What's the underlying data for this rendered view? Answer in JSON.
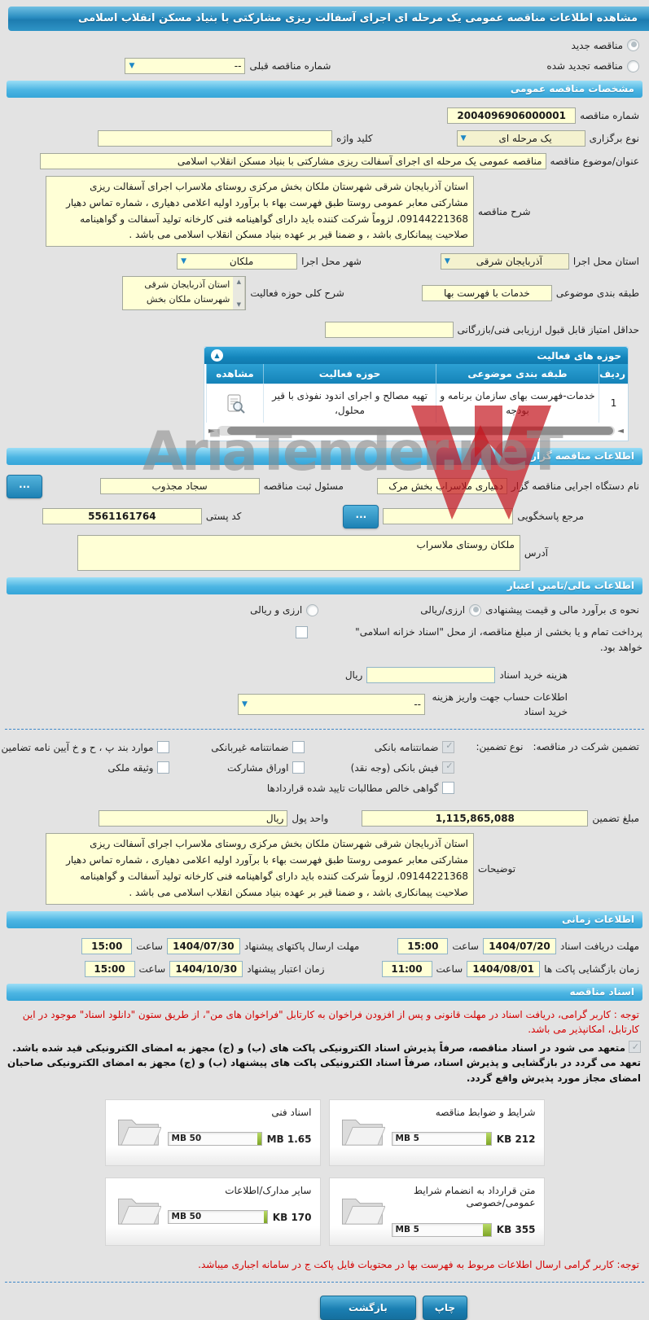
{
  "watermark": {
    "text": "AriaTender.neT"
  },
  "header": {
    "title": "مشاهده اطلاعات مناقصه عمومی یک مرحله ای اجرای آسفالت ریزی مشارکتی با بنیاد مسکن انقلاب اسلامی"
  },
  "top": {
    "new_label": "مناقصه جدید",
    "new_checked": true,
    "renew_label": "مناقصه تجدید شده",
    "renew_checked": false,
    "prev_no_label": "شماره مناقصه قبلی",
    "prev_no_value": "--"
  },
  "specs": {
    "bar": "مشخصات مناقصه عمومی",
    "no_label": "شماره مناقصه",
    "no_value": "2004096906000001",
    "type_label": "نوع برگزاری",
    "type_value": "یک مرحله ای",
    "keyword_label": "کلید واژه",
    "keyword_value": "",
    "subject_label": "عنوان/موضوع مناقصه",
    "subject_value": "مناقصه عمومی یک مرحله ای اجرای آسفالت ریزی مشارکتی با بنیاد مسکن انقلاب اسلامی",
    "desc_label": "شرح مناقصه",
    "desc_value": "استان آذربایجان شرقی شهرستان ملکان بخش مرکزی روستای ملاسراب اجرای آسفالت ریزی مشارکتی معابر عمومی روستا طبق فهرست بهاء با برآورد اولیه اعلامی دهیاری ، شماره تماس دهیار 09144221368، لزوماً شرکت کننده باید دارای گواهینامه فنی کارخانه تولید آسفالت و گواهینامه صلاحیت پیمانکاری باشد ، و ضمنا قیر بر عهده بنیاد مسکن انقلاب اسلامی می باشد .",
    "province_label": "استان محل اجرا",
    "province_value": "آذربایجان شرقی",
    "city_label": "شهر محل اجرا",
    "city_value": "ملکان",
    "category_label": "طبقه بندی موضوعی",
    "category_value": "خدمات با فهرست بها",
    "scope_label": "شرح کلی حوزه فعالیت",
    "scope_value": "استان آذربایجان شرقی شهرستان ملکان بخش",
    "min_score_label": "حداقل امتیاز قابل قبول ارزیابی فنی/بازرگانی",
    "min_score_value": ""
  },
  "activity_table": {
    "bar": "حوزه های فعالیت",
    "headers": {
      "no": "ردیف",
      "category": "طبقه بندی موضوعی",
      "activity": "حوزه فعالیت",
      "view": "مشاهده"
    },
    "rows": [
      {
        "no": "1",
        "category": "خدمات-فهرست بهای سازمان برنامه و بودجه",
        "activity": "تهیه مصالح و اجرای اندود نفوذی  با قیر محلول،"
      }
    ]
  },
  "employer": {
    "bar": "اطلاعات مناقصه گزار",
    "agency_label": "نام دستگاه اجرایی مناقصه گزار",
    "agency_value": "دهیاری ملاسراب بخش مرک",
    "registrar_label": "مسئول ثبت مناقصه",
    "registrar_value": "سجاد مجذوب",
    "ref_label": "مرجع پاسخگویی",
    "ref_value": "",
    "postal_label": "کد پستی",
    "postal_value": "5561161764",
    "address_label": "آدرس",
    "address_value": "ملکان روستای ملاسراب",
    "more_label": "..."
  },
  "financial": {
    "bar": "اطلاعات مالی/تامین اعتبار",
    "estimate_label": "نحوه ی برآورد مالی و قیمت پیشنهادی",
    "estimate_opt1": "ارزی/ریالی",
    "estimate_opt1_checked": true,
    "estimate_opt2": "ارزی و ریالی",
    "estimate_opt2_checked": false,
    "treasury_line1": "پرداخت تمام و یا بخشی از مبلغ مناقصه، از محل \"اسناد خزانه اسلامی\"",
    "treasury_line2": "خواهد بود.",
    "treasury_checked": false,
    "doc_fee_label": "هزینه خرید اسناد",
    "doc_fee_value": "",
    "currency": "ریال",
    "account_label": "اطلاعات حساب جهت واریز هزینه خرید اسناد",
    "account_value": "--",
    "guarantee_label": "تضمین شرکت در مناقصه:",
    "guarantee_type_label": "نوع تضمین:",
    "guarantee_options": [
      {
        "label": "ضمانتنامه بانکی",
        "checked": true
      },
      {
        "label": "ضمانتنامه غیربانکی",
        "checked": false
      },
      {
        "label": "موارد بند پ ، ح و خ آیین نامه تضامین",
        "checked": false
      },
      {
        "label": "فیش بانکی (وجه نقد)",
        "checked": true
      },
      {
        "label": "اوراق مشارکت",
        "checked": false
      },
      {
        "label": "وثیقه ملکی",
        "checked": false
      },
      {
        "label": "گواهی خالص مطالبات تایید شده قراردادها",
        "checked": false
      }
    ],
    "amount_label": "مبلغ تضمین",
    "amount_value": "1,115,865,088",
    "currency_unit_label": "واحد پول",
    "currency_unit_value": "ریال",
    "notes_label": "توضیحات",
    "notes_value": "استان آذربایجان شرقی شهرستان ملکان بخش مرکزی روستای ملاسراب اجرای آسفالت ریزی مشارکتی معابر عمومی روستا طبق فهرست بهاء با برآورد اولیه اعلامی دهیاری ، شماره تماس دهیار 09144221368، لزوماً شرکت کننده باید دارای گواهینامه فنی کارخانه تولید آسفالت و گواهینامه صلاحیت پیمانکاری باشد ، و ضمنا قیر بر عهده بنیاد مسکن انقلاب اسلامی می باشد ."
  },
  "schedule": {
    "bar": "اطلاعات زمانی",
    "hour_label": "ساعت",
    "rows": [
      {
        "r_label": "مهلت دریافت اسناد",
        "r_date": "1404/07/20",
        "r_time": "15:00",
        "l_label": "مهلت ارسال پاکتهای پیشنهاد",
        "l_date": "1404/07/30",
        "l_time": "15:00"
      },
      {
        "r_label": "زمان بازگشایی پاکت ها",
        "r_date": "1404/08/01",
        "r_time": "11:00",
        "l_label": "زمان اعتبار پیشنهاد",
        "l_date": "1404/10/30",
        "l_time": "15:00"
      }
    ]
  },
  "documents": {
    "bar": "اسناد مناقصه",
    "notice1": "توجه : کاربر گرامی، دریافت اسناد در مهلت قانونی و پس از افزودن فراخوان به کارتابل \"فراخوان های من\"، از طریق ستون \"دانلود اسناد\" موجود در این کارتابل، امکانپذیر می باشد.",
    "pledge_checked": true,
    "pledge": "متعهد می شود در اسناد مناقصه، صرفاً پذیرش اسناد الکترونیکی پاکت های (ب) و (ج) مجهز به امضای الکترونیکی قید شده باشد. تعهد می گردد در بازگشایی و پذیرش اسناد، صرفاً اسناد الکترونیکی پاکت های پیشنهاد (ب) و (ج) مجهز به امضای الکترونیکی صاحبان امضای مجاز مورد پذیرش واقع گردد.",
    "files": [
      {
        "title": "شرایط و ضوابط مناقصه",
        "size": "212 KB",
        "max": "5 MB",
        "percent": 5
      },
      {
        "title": "اسناد فنی",
        "size": "1.65 MB",
        "max": "50 MB",
        "percent": 4
      },
      {
        "title": "متن قرارداد به انضمام شرایط عمومی/خصوصی",
        "size": "355 KB",
        "max": "5 MB",
        "percent": 8
      },
      {
        "title": "سایر مدارک/اطلاعات",
        "size": "170 KB",
        "max": "50 MB",
        "percent": 3
      }
    ],
    "notice2": "توجه: کاربر گرامی ارسال اطلاعات مربوط به فهرست بها در محتویات فایل پاکت ج در سامانه اجباری میباشد."
  },
  "footer": {
    "print": "چاپ",
    "back": "بازگشت"
  },
  "colors": {
    "accent_blue": "#1d7cb0",
    "section_blue": "#4cb5e3",
    "field_yellow": "#ffffd6",
    "notice_red": "#d40000",
    "progress_green": "#7ea526",
    "logo_red": "#c41720"
  }
}
